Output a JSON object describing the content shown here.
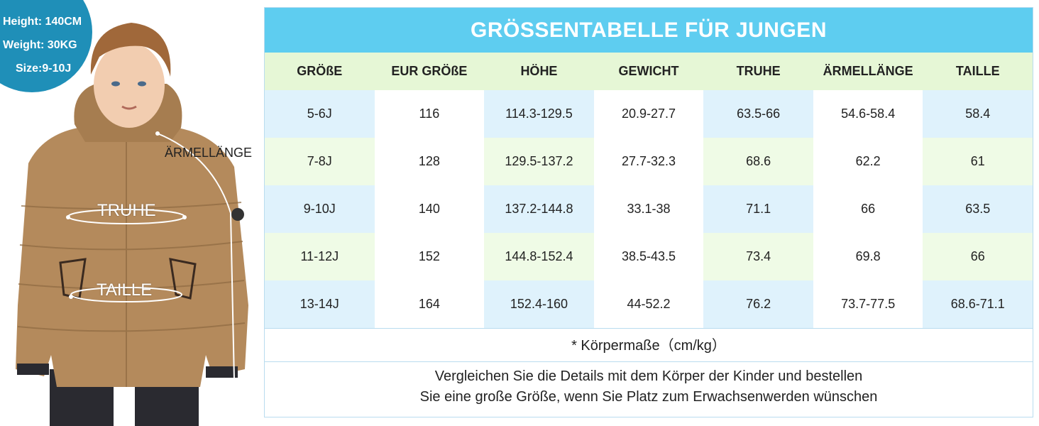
{
  "badge": {
    "height": "Height: 140CM",
    "weight": "Weight: 30KG",
    "size": "Size:9-10J"
  },
  "model_labels": {
    "sleeve": "ÄRMELLÄNGE",
    "chest": "TRUHE",
    "waist": "TAILLE"
  },
  "table": {
    "title": "GRÖSSENTABELLE FÜR JUNGEN",
    "headers": [
      "GRÖßE",
      "EUR GRÖßE",
      "HÖHE",
      "GEWICHT",
      "TRUHE",
      "ÄRMELLÄNGE",
      "TAILLE"
    ],
    "rows": [
      [
        "5-6J",
        "116",
        "114.3-129.5",
        "20.9-27.7",
        "63.5-66",
        "54.6-58.4",
        "58.4"
      ],
      [
        "7-8J",
        "128",
        "129.5-137.2",
        "27.7-32.3",
        "68.6",
        "62.2",
        "61"
      ],
      [
        "9-10J",
        "140",
        "137.2-144.8",
        "33.1-38",
        "71.1",
        "66",
        "63.5"
      ],
      [
        "11-12J",
        "152",
        "144.8-152.4",
        "38.5-43.5",
        "73.4",
        "69.8",
        "66"
      ],
      [
        "13-14J",
        "164",
        "152.4-160",
        "44-52.2",
        "76.2",
        "73.7-77.5",
        "68.6-71.1"
      ]
    ],
    "note": "* Körpermaße（cm/kg）",
    "info_line1": "Vergleichen Sie die Details mit dem Körper der Kinder und bestellen",
    "info_line2": "Sie eine große Größe, wenn Sie Platz zum Erwachsenwerden wünschen"
  },
  "colors": {
    "title_bg": "#5ecdf0",
    "header_bg": "#e6f7d6",
    "badge_bg": "#1f8fb8",
    "jacket": "#b48a5c"
  }
}
